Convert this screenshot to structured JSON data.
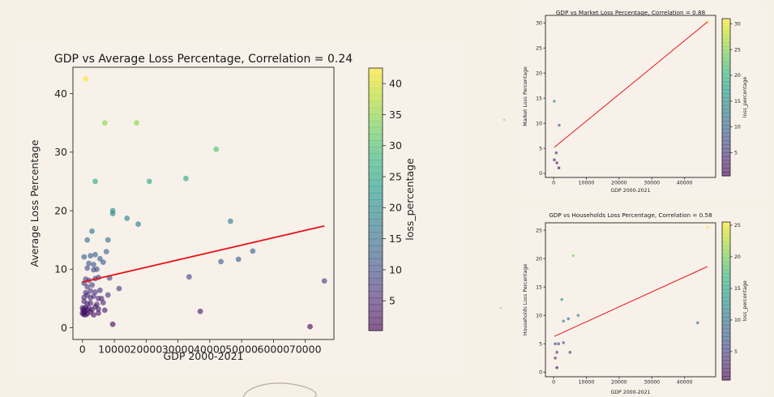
{
  "chart_data": [
    {
      "type": "scatter",
      "title": "GDP vs Average Loss Percentage, Correlation = 0.24",
      "xlabel": "GDP 2000-2021",
      "ylabel": "Average Loss Percentage",
      "xlim": [
        -3000,
        79000
      ],
      "ylim": [
        -2,
        44.5
      ],
      "xticks": [
        0,
        10000,
        20000,
        30000,
        40000,
        50000,
        60000,
        70000
      ],
      "xtick_labels": [
        "0",
        "10000",
        "20000",
        "30000",
        "40000",
        "50000",
        "60000",
        "70000"
      ],
      "yticks": [
        0,
        10,
        20,
        30,
        40
      ],
      "ytick_labels": [
        "0",
        "10",
        "20",
        "30",
        "40"
      ],
      "colorbar": {
        "label": "loss_percentage",
        "cmap": "viridis",
        "range": [
          0.2,
          42.5
        ],
        "ticks": [
          5,
          10,
          15,
          20,
          25,
          30,
          35,
          40
        ],
        "tick_labels": [
          "5",
          "10",
          "15",
          "20",
          "25",
          "30",
          "35",
          "40"
        ]
      },
      "trendline": {
        "color": "#e8141b",
        "x": [
          0,
          76000
        ],
        "y": [
          7.8,
          17.4
        ]
      },
      "grid": false,
      "points": [
        {
          "x": 1000,
          "y": 42.5
        },
        {
          "x": 7000,
          "y": 35
        },
        {
          "x": 17000,
          "y": 35
        },
        {
          "x": 42000,
          "y": 30.5
        },
        {
          "x": 4000,
          "y": 25
        },
        {
          "x": 21000,
          "y": 25
        },
        {
          "x": 32500,
          "y": 25.5
        },
        {
          "x": 9500,
          "y": 20
        },
        {
          "x": 9500,
          "y": 19.5
        },
        {
          "x": 14000,
          "y": 18.7
        },
        {
          "x": 17500,
          "y": 17.7
        },
        {
          "x": 46500,
          "y": 18.2
        },
        {
          "x": 3000,
          "y": 16.5
        },
        {
          "x": 1500,
          "y": 15
        },
        {
          "x": 8000,
          "y": 15
        },
        {
          "x": 53500,
          "y": 13.1
        },
        {
          "x": 7500,
          "y": 13
        },
        {
          "x": 500,
          "y": 12.1
        },
        {
          "x": 2500,
          "y": 12.3
        },
        {
          "x": 4000,
          "y": 12.5
        },
        {
          "x": 5500,
          "y": 11.8
        },
        {
          "x": 2000,
          "y": 11
        },
        {
          "x": 3500,
          "y": 10.8
        },
        {
          "x": 6500,
          "y": 11.2
        },
        {
          "x": 43500,
          "y": 11.3
        },
        {
          "x": 49000,
          "y": 11.7
        },
        {
          "x": 1500,
          "y": 10.2
        },
        {
          "x": 3500,
          "y": 9.9
        },
        {
          "x": 4500,
          "y": 10
        },
        {
          "x": 76000,
          "y": 8
        },
        {
          "x": 33500,
          "y": 8.7
        },
        {
          "x": 1000,
          "y": 8.3
        },
        {
          "x": 2000,
          "y": 8.1
        },
        {
          "x": 4000,
          "y": 8.4
        },
        {
          "x": 5000,
          "y": 8.6
        },
        {
          "x": 8500,
          "y": 8.5
        },
        {
          "x": 500,
          "y": 7.6
        },
        {
          "x": 1500,
          "y": 7
        },
        {
          "x": 3000,
          "y": 7.3
        },
        {
          "x": 11500,
          "y": 6.7
        },
        {
          "x": 1000,
          "y": 6
        },
        {
          "x": 2500,
          "y": 6.3
        },
        {
          "x": 4000,
          "y": 6.1
        },
        {
          "x": 5500,
          "y": 6.4
        },
        {
          "x": 500,
          "y": 5.2
        },
        {
          "x": 1500,
          "y": 5.6
        },
        {
          "x": 2500,
          "y": 5.1
        },
        {
          "x": 3500,
          "y": 5.4
        },
        {
          "x": 5000,
          "y": 5
        },
        {
          "x": 6000,
          "y": 5
        },
        {
          "x": 8000,
          "y": 5.6
        },
        {
          "x": 500,
          "y": 4.5
        },
        {
          "x": 1500,
          "y": 4.1
        },
        {
          "x": 2500,
          "y": 4.2
        },
        {
          "x": 4500,
          "y": 4
        },
        {
          "x": 6500,
          "y": 4.3
        },
        {
          "x": 0,
          "y": 3.4
        },
        {
          "x": 200,
          "y": 3
        },
        {
          "x": 500,
          "y": 3.2
        },
        {
          "x": 700,
          "y": 2.8
        },
        {
          "x": 1000,
          "y": 3.5
        },
        {
          "x": 1300,
          "y": 3
        },
        {
          "x": 2000,
          "y": 3.3
        },
        {
          "x": 3000,
          "y": 3.1
        },
        {
          "x": 4000,
          "y": 3.6
        },
        {
          "x": 5000,
          "y": 3.2
        },
        {
          "x": 7000,
          "y": 3
        },
        {
          "x": 0,
          "y": 2.5
        },
        {
          "x": 300,
          "y": 2.3
        },
        {
          "x": 600,
          "y": 2.6
        },
        {
          "x": 900,
          "y": 2.2
        },
        {
          "x": 1500,
          "y": 2.4
        },
        {
          "x": 2500,
          "y": 2.7
        },
        {
          "x": 3500,
          "y": 2.2
        },
        {
          "x": 5000,
          "y": 2.5
        },
        {
          "x": 37000,
          "y": 2.8
        },
        {
          "x": 9500,
          "y": 0.6
        },
        {
          "x": 71500,
          "y": 0.2
        }
      ]
    },
    {
      "type": "scatter",
      "title": "GDP vs Market Loss Percentage, Correlation = 0.88",
      "xlabel": "GDP 2000-2021",
      "ylabel": "Market Loss Percentage",
      "xlim": [
        -2500,
        49500
      ],
      "ylim": [
        -0.8,
        31.5
      ],
      "xticks": [
        0,
        10000,
        20000,
        30000,
        40000
      ],
      "xtick_labels": [
        "0",
        "10000",
        "20000",
        "30000",
        "40000"
      ],
      "yticks": [
        0,
        5,
        10,
        15,
        20,
        25,
        30
      ],
      "ytick_labels": [
        "0",
        "5",
        "10",
        "15",
        "20",
        "25",
        "30"
      ],
      "colorbar": {
        "label": "loss_percentage",
        "cmap": "viridis",
        "range": [
          0.5,
          31
        ],
        "ticks": [
          5,
          10,
          15,
          20,
          25,
          30
        ],
        "tick_labels": [
          "5",
          "10",
          "15",
          "20",
          "25",
          "30"
        ]
      },
      "trendline": {
        "color": "#e8141b",
        "x": [
          200,
          47000
        ],
        "y": [
          5.2,
          30.2
        ]
      },
      "grid": false,
      "points": [
        {
          "x": 200,
          "y": 14.4
        },
        {
          "x": 1700,
          "y": 9.6
        },
        {
          "x": 800,
          "y": 4.1
        },
        {
          "x": 200,
          "y": 2.7
        },
        {
          "x": 1000,
          "y": 2.1
        },
        {
          "x": 1600,
          "y": 1.1
        },
        {
          "x": 47000,
          "y": 30.2
        }
      ]
    },
    {
      "type": "scatter",
      "title": "GDP vs Households Loss Percentage, Correlation = 0.58",
      "xlabel": "GDP 2000-2021",
      "ylabel": "Households Loss Percentage",
      "xlim": [
        -2500,
        49500
      ],
      "ylim": [
        -0.8,
        26.3
      ],
      "xticks": [
        0,
        10000,
        20000,
        30000,
        40000
      ],
      "xtick_labels": [
        "0",
        "10000",
        "20000",
        "30000",
        "40000"
      ],
      "yticks": [
        0,
        5,
        10,
        15,
        20,
        25
      ],
      "ytick_labels": [
        "0",
        "5",
        "10",
        "15",
        "20",
        "25"
      ],
      "colorbar": {
        "label": "loss_percentage",
        "cmap": "viridis",
        "range": [
          0.5,
          25.5
        ],
        "ticks": [
          5,
          10,
          15,
          20,
          25
        ],
        "tick_labels": [
          "5",
          "10",
          "15",
          "20",
          "25"
        ]
      },
      "trendline": {
        "color": "#e8141b",
        "x": [
          200,
          47000
        ],
        "y": [
          6.3,
          18.6
        ]
      },
      "grid": false,
      "points": [
        {
          "x": 47000,
          "y": 25.5
        },
        {
          "x": 6000,
          "y": 20.5
        },
        {
          "x": 2500,
          "y": 12.8
        },
        {
          "x": 7500,
          "y": 10
        },
        {
          "x": 3000,
          "y": 9
        },
        {
          "x": 4500,
          "y": 9.4
        },
        {
          "x": 44000,
          "y": 8.7
        },
        {
          "x": 500,
          "y": 5
        },
        {
          "x": 1500,
          "y": 5
        },
        {
          "x": 3000,
          "y": 5.2
        },
        {
          "x": 1000,
          "y": 3.5
        },
        {
          "x": 5000,
          "y": 3.5
        },
        {
          "x": 500,
          "y": 2.5
        },
        {
          "x": 1000,
          "y": 0.8
        }
      ]
    }
  ]
}
